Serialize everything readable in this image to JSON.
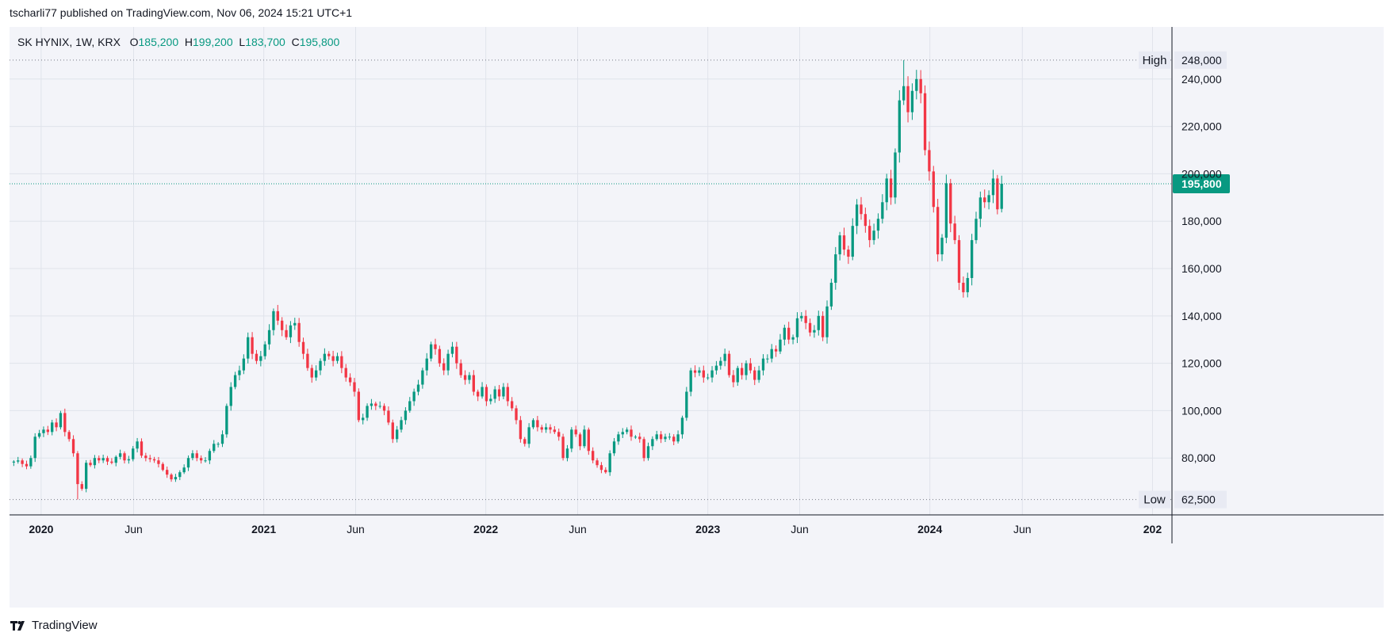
{
  "header": {
    "published": "tscharli77 published on TradingView.com, Nov 06, 2024 15:21 UTC+1"
  },
  "legend": {
    "symbol": "SK HYNIX, 1W, KRX",
    "open_label": "O",
    "open": "185,200",
    "high_label": "H",
    "high": "199,200",
    "low_label": "L",
    "low": "183,700",
    "close_label": "C",
    "close": "195,800"
  },
  "footer": {
    "brand": "TradingView",
    "logo_icon": "tradingview-logo-icon"
  },
  "colors": {
    "up": "#089981",
    "down": "#f23645",
    "grid": "#e0e3eb",
    "background": "#f3f4f9",
    "last_price": "#089981"
  },
  "chart_data": {
    "type": "candlestick",
    "symbol": "SK HYNIX",
    "interval": "1W",
    "exchange": "KRX",
    "ylim": [
      56000,
      262000
    ],
    "xlim": [
      "2019-11-10",
      "2025-02-02"
    ],
    "grid": true,
    "y_ticks": [
      80000,
      100000,
      120000,
      140000,
      160000,
      180000,
      200000,
      220000,
      240000
    ],
    "y_tick_labels": [
      "80,000",
      "100,000",
      "120,000",
      "140,000",
      "160,000",
      "180,000",
      "200,000",
      "220,000",
      "240,000"
    ],
    "x_ticks": [
      {
        "date": "2020-01-01",
        "label": "2020",
        "bold": true
      },
      {
        "date": "2020-06-01",
        "label": "Jun",
        "bold": false
      },
      {
        "date": "2021-01-01",
        "label": "2021",
        "bold": true
      },
      {
        "date": "2021-06-01",
        "label": "Jun",
        "bold": false
      },
      {
        "date": "2022-01-01",
        "label": "2022",
        "bold": true
      },
      {
        "date": "2022-06-01",
        "label": "Jun",
        "bold": false
      },
      {
        "date": "2023-01-01",
        "label": "2023",
        "bold": true
      },
      {
        "date": "2023-06-01",
        "label": "Jun",
        "bold": false
      },
      {
        "date": "2024-01-01",
        "label": "2024",
        "bold": true
      },
      {
        "date": "2024-06-01",
        "label": "Jun",
        "bold": false
      },
      {
        "date": "2025-01-01",
        "label": "202",
        "bold": true
      }
    ],
    "high_marker": {
      "label": "High",
      "value": 248000,
      "value_label": "248,000"
    },
    "low_marker": {
      "label": "Low",
      "value": 62500,
      "value_label": "62,500"
    },
    "last_price": {
      "value": 195800,
      "value_label": "195,800"
    },
    "start_date": "2019-11-17",
    "weekly_closes": [
      78500,
      79000,
      77500,
      76500,
      80000,
      89000,
      90500,
      92000,
      91000,
      95000,
      93000,
      99000,
      91000,
      88000,
      82000,
      69000,
      67000,
      78000,
      77000,
      80000,
      79000,
      80000,
      78500,
      78000,
      80500,
      82000,
      79000,
      79500,
      84000,
      87000,
      81000,
      80000,
      79500,
      79000,
      77500,
      75000,
      73000,
      71000,
      72000,
      74000,
      76000,
      80000,
      82000,
      80000,
      79000,
      79000,
      83000,
      86000,
      86000,
      90000,
      102000,
      110000,
      115000,
      117000,
      122000,
      131000,
      124000,
      121000,
      123000,
      128000,
      134000,
      142000,
      138000,
      134000,
      131000,
      136000,
      137000,
      129000,
      124000,
      118000,
      114000,
      117000,
      121000,
      124000,
      123000,
      121000,
      123000,
      118000,
      114000,
      112000,
      108000,
      96000,
      97000,
      102000,
      103000,
      102000,
      102000,
      100000,
      95000,
      88000,
      92000,
      96000,
      100000,
      104000,
      108000,
      111000,
      117000,
      122000,
      128000,
      126000,
      120000,
      117000,
      124000,
      127000,
      120000,
      115000,
      113000,
      115000,
      108000,
      106000,
      110000,
      104000,
      105000,
      109000,
      106000,
      110000,
      104000,
      101000,
      96000,
      88000,
      86000,
      93000,
      96000,
      93000,
      92000,
      93000,
      92000,
      91000,
      89000,
      80000,
      84000,
      92000,
      90000,
      85000,
      92000,
      83000,
      79000,
      77000,
      75000,
      74000,
      82000,
      87000,
      90000,
      91000,
      92000,
      89000,
      89000,
      88000,
      80000,
      85000,
      88000,
      90000,
      88000,
      89000,
      89000,
      87000,
      90000,
      97000,
      108000,
      117000,
      116000,
      117000,
      114000,
      114000,
      117000,
      119000,
      121000,
      124000,
      115000,
      112000,
      118000,
      115000,
      120000,
      117000,
      113000,
      117000,
      122000,
      122000,
      126000,
      125000,
      130000,
      135000,
      130000,
      131000,
      139000,
      140000,
      137000,
      133000,
      134000,
      140000,
      131000,
      144000,
      154000,
      166000,
      174000,
      168000,
      165000,
      178000,
      187000,
      183000,
      178000,
      172000,
      176000,
      181000,
      188000,
      198000,
      190000,
      209000,
      231000,
      237000,
      226000,
      235000,
      240000,
      234000,
      210000,
      201000,
      186000,
      166000,
      173000,
      196000,
      179000,
      172000,
      154000,
      150000,
      156000,
      172000,
      181000,
      190000,
      188000,
      191000,
      198000,
      185000,
      195800
    ]
  },
  "axis_labels": {
    "high_tag": "High",
    "low_tag": "Low"
  }
}
